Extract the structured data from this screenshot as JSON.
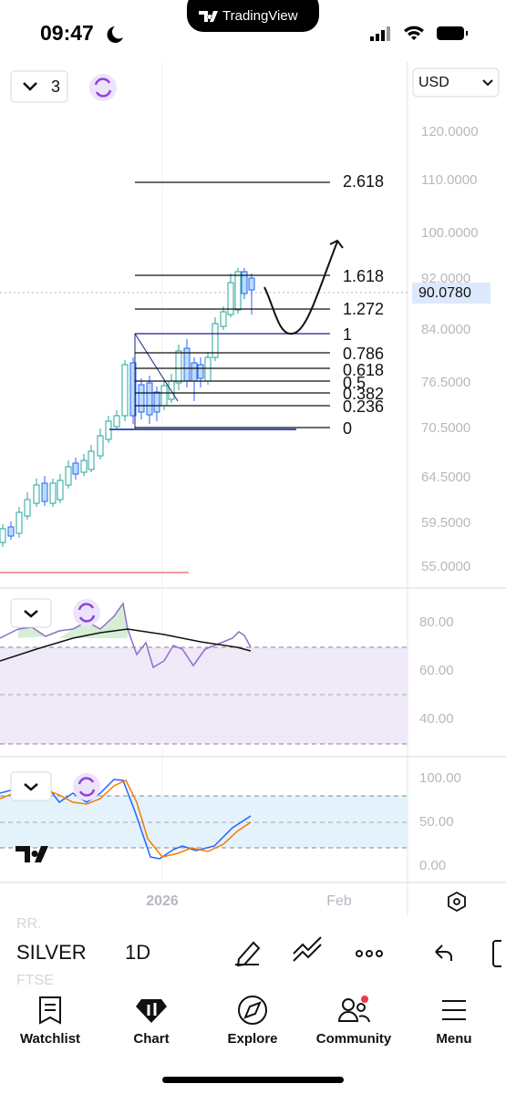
{
  "status_bar": {
    "time": "09:47"
  },
  "app_badge": "TradingView",
  "chart": {
    "interval_count": "3",
    "currency": "USD",
    "price_axis": [
      "120.0000",
      "110.0000",
      "100.0000",
      "92.0000",
      "84.0000",
      "76.5000",
      "70.5000",
      "64.5000",
      "59.5000",
      "55.0000"
    ],
    "last_price": "90.0780",
    "fib_levels": [
      "2.618",
      "1.618",
      "1.272",
      "1",
      "0.786",
      "0.618",
      "0.5",
      "0.382",
      "0.236",
      "0"
    ]
  },
  "rsi": {
    "axis": [
      "80.00",
      "60.00",
      "40.00"
    ]
  },
  "stochastic": {
    "axis": [
      "100.00",
      "50.00",
      "0.00"
    ]
  },
  "time_axis": [
    "2026",
    "Feb"
  ],
  "toolbar": {
    "symbol": "SILVER",
    "interval": "1D",
    "ghost": [
      "RR.",
      "FTSE"
    ]
  },
  "nav": [
    "Watchlist",
    "Chart",
    "Explore",
    "Community",
    "Menu"
  ]
}
